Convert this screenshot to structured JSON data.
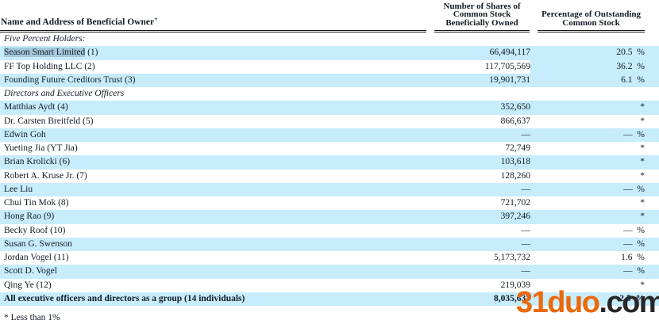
{
  "colors": {
    "row_blue": "#c7ecfc",
    "name_highlight": "#a6c8dd",
    "text": "#131b24"
  },
  "table": {
    "headers": {
      "col1": "Name and Address of Beneficial Owner",
      "col1_sup": "+",
      "col2_lines": [
        "Number of Shares of",
        "Common Stock",
        "Beneficially Owned"
      ],
      "col3_lines": [
        "Percentage of Outstanding",
        "Common Stock"
      ]
    },
    "rows": [
      {
        "name": "Five Percent Holders:",
        "shares": "",
        "pct": "",
        "bg": "white",
        "italic": true
      },
      {
        "name": "Season Smart Limited",
        "suffix": " (1)",
        "name_highlight": true,
        "shares": "66,494,117",
        "pct": "20.5 %",
        "bg": "blue"
      },
      {
        "name": "FF Top Holding LLC (2)",
        "shares": "117,705,569",
        "pct": "36.2 %",
        "bg": "split"
      },
      {
        "name": "Founding Future Creditors Trust (3)",
        "shares": "19,901,731",
        "pct": "6.1 %",
        "bg": "blue"
      },
      {
        "name": "Directors and Executive Officers",
        "shares": "",
        "pct": "",
        "bg": "white",
        "italic": true
      },
      {
        "name": "Matthias Aydt (4)",
        "shares": "352,650",
        "pct": "*",
        "bg": "blue"
      },
      {
        "name": "Dr. Carsten Breitfeld (5)",
        "shares": "866,637",
        "pct": "*",
        "bg": "white"
      },
      {
        "name": "Edwin Goh",
        "shares": "—",
        "pct": "— %",
        "bg": "blue"
      },
      {
        "name": "Yueting Jia (YT Jia)",
        "shares": "72,749",
        "pct": "*",
        "bg": "white"
      },
      {
        "name": "Brian Krolicki (6)",
        "shares": "103,618",
        "pct": "*",
        "bg": "blue"
      },
      {
        "name": "Robert A. Kruse Jr. (7)",
        "shares": "128,260",
        "pct": "*",
        "bg": "white"
      },
      {
        "name": "Lee Liu",
        "shares": "—",
        "pct": "— %",
        "bg": "blue"
      },
      {
        "name": "Chui Tin Mok (8)",
        "shares": "721,702",
        "pct": "*",
        "bg": "white"
      },
      {
        "name": "Hong Rao (9)",
        "shares": "397,246",
        "pct": "*",
        "bg": "blue"
      },
      {
        "name": "Becky Roof (10)",
        "shares": "—",
        "pct": "— %",
        "bg": "white"
      },
      {
        "name": "Susan G. Swenson",
        "shares": "—",
        "pct": "— %",
        "bg": "blue"
      },
      {
        "name": "Jordan Vogel (11)",
        "shares": "5,173,732",
        "pct": "1.6 %",
        "bg": "white"
      },
      {
        "name": "Scott D. Vogel",
        "shares": "—",
        "pct": "— %",
        "bg": "blue"
      },
      {
        "name": "Qing Ye (12)",
        "shares": "219,039",
        "pct": "*",
        "bg": "white"
      },
      {
        "name": "All executive officers and directors as a group (14 individuals)",
        "shares": "8,035,633",
        "pct": "2.5 %",
        "bg": "blue",
        "bold": true
      }
    ],
    "footnote": "* Less than 1%"
  },
  "watermark": {
    "brand": "31duo",
    "tld": ".com",
    "brand_color": "#ec680c",
    "tld_color": "#282828"
  }
}
